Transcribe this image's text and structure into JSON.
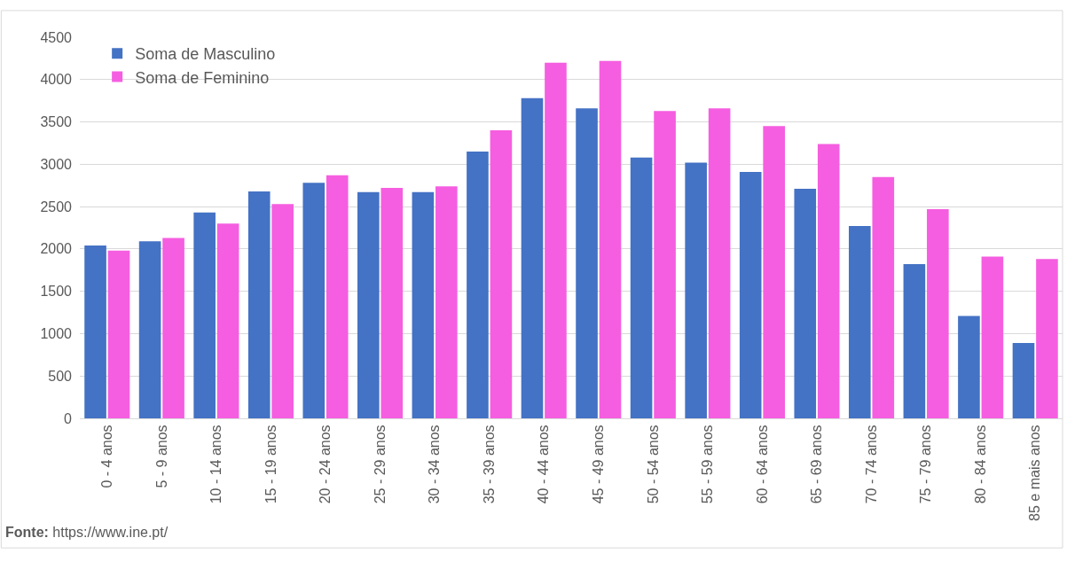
{
  "chart_data": {
    "type": "bar",
    "categories": [
      "0 - 4 anos",
      "5 - 9 anos",
      "10 - 14 anos",
      "15 - 19 anos",
      "20 - 24 anos",
      "25 - 29 anos",
      "30 - 34 anos",
      "35 - 39 anos",
      "40 - 44 anos",
      "45 - 49 anos",
      "50 - 54 anos",
      "55 - 59 anos",
      "60 - 64 anos",
      "65 - 69 anos",
      "70 - 74 anos",
      "75 - 79 anos",
      "80 - 84 anos",
      "85 e mais anos"
    ],
    "series": [
      {
        "name": "Soma de Masculino",
        "color": "#4472c4",
        "values": [
          2040,
          2090,
          2430,
          2680,
          2780,
          2670,
          2670,
          3150,
          3780,
          3660,
          3080,
          3020,
          2910,
          2710,
          2270,
          1820,
          1210,
          890
        ]
      },
      {
        "name": "Soma de Feminino",
        "color": "#f55ee0",
        "values": [
          1980,
          2130,
          2300,
          2530,
          2870,
          2720,
          2740,
          3400,
          4200,
          4220,
          3630,
          3660,
          3450,
          3240,
          2850,
          2470,
          1910,
          1880
        ]
      }
    ],
    "ylim": [
      0,
      4500
    ],
    "yticks": [
      0,
      500,
      1000,
      1500,
      2000,
      2500,
      3000,
      3500,
      4000,
      4500
    ],
    "grid": "y",
    "legend": "top left",
    "annotations": [
      "Fonte: https://www.ine.pt/"
    ]
  }
}
